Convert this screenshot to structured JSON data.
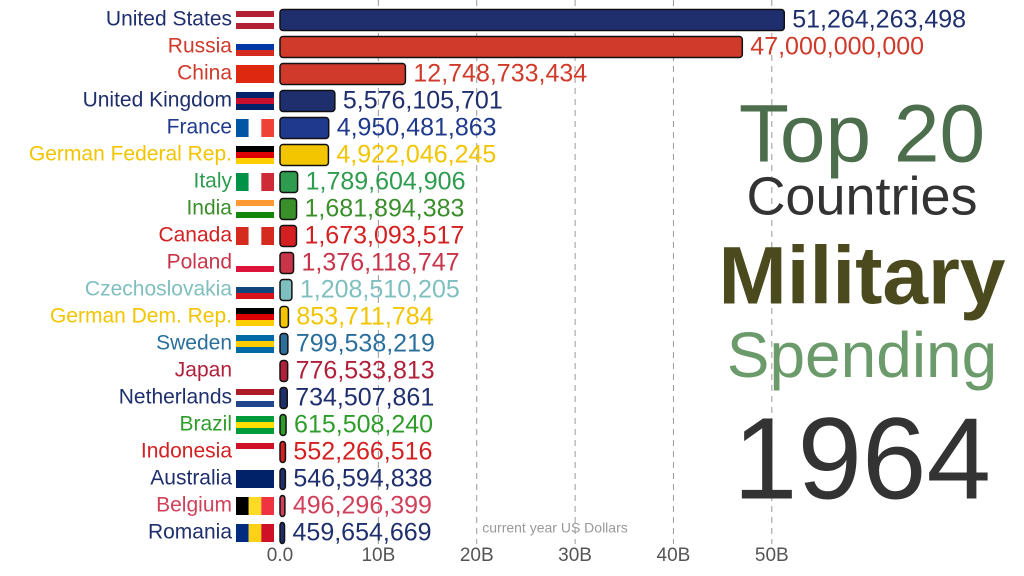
{
  "chart_data": {
    "type": "bar",
    "orientation": "horizontal",
    "title_lines": [
      "Top 20",
      "Countries",
      "Military",
      "Spending"
    ],
    "year": "1964",
    "x_label": "current year US Dollars",
    "categories": [
      "United States",
      "Russia",
      "China",
      "United Kingdom",
      "France",
      "German Federal Rep.",
      "Italy",
      "India",
      "Canada",
      "Poland",
      "Czechoslovakia",
      "German Dem. Rep.",
      "Sweden",
      "Japan",
      "Netherlands",
      "Brazil",
      "Indonesia",
      "Australia",
      "Belgium",
      "Romania"
    ],
    "values": [
      51264263498,
      47000000000,
      12748733434,
      5576105701,
      4950481863,
      4922046245,
      1789604906,
      1681894383,
      1673093517,
      1376118747,
      1208510205,
      853711784,
      799538219,
      776533813,
      734507861,
      615508240,
      552266516,
      546594838,
      496296399,
      459654669
    ],
    "value_labels": [
      "51,264,263,498",
      "47,000,000,000",
      "12,748,733,434",
      "5,576,105,701",
      "4,950,481,863",
      "4,922,046,245",
      "1,789,604,906",
      "1,681,894,383",
      "1,673,093,517",
      "1,376,118,747",
      "1,208,510,205",
      "853,711,784",
      "799,538,219",
      "776,533,813",
      "734,507,861",
      "615,508,240",
      "552,266,516",
      "546,594,838",
      "496,296,399",
      "459,654,669"
    ],
    "colors": [
      "#1f2f6e",
      "#d03a2a",
      "#d03a2a",
      "#1f2f6e",
      "#1f3a8c",
      "#f2c500",
      "#2e9c4e",
      "#3a8f2a",
      "#d42020",
      "#c8344a",
      "#7fbfbf",
      "#f2c500",
      "#2a6f9c",
      "#b0203a",
      "#1f2f6e",
      "#2e9c2a",
      "#d42020",
      "#1f2f6e",
      "#d0405a",
      "#1f2f6e"
    ],
    "xlim": [
      0,
      55000000000
    ],
    "xticks": [
      {
        "value": 0,
        "label": "0.0"
      },
      {
        "value": 10000000000,
        "label": "10B"
      },
      {
        "value": 20000000000,
        "label": "20B"
      },
      {
        "value": 30000000000,
        "label": "30B"
      },
      {
        "value": 40000000000,
        "label": "40B"
      },
      {
        "value": 50000000000,
        "label": "50B"
      }
    ],
    "grid": true
  }
}
